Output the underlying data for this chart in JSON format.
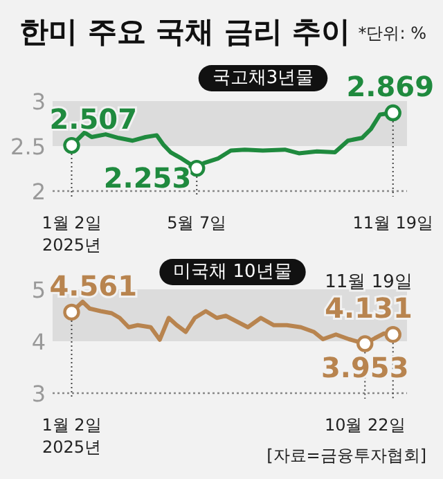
{
  "chart_data": [
    {
      "type": "line",
      "title": "한미 주요 국채 금리 추이",
      "subtitle": "국고채3년물",
      "x": [
        "2025-01-02",
        "2025-01-15",
        "2025-01-22",
        "2025-02-05",
        "2025-02-18",
        "2025-03-04",
        "2025-03-17",
        "2025-03-28",
        "2025-04-04",
        "2025-04-11",
        "2025-04-22",
        "2025-05-07",
        "2025-05-14",
        "2025-05-28",
        "2025-06-10",
        "2025-06-24",
        "2025-07-12",
        "2025-08-03",
        "2025-08-17",
        "2025-09-04",
        "2025-09-22",
        "2025-10-05",
        "2025-10-19",
        "2025-10-28",
        "2025-11-06",
        "2025-11-19"
      ],
      "series": [
        {
          "color": "#1f8a3e",
          "values": [
            2.507,
            2.65,
            2.6,
            2.63,
            2.59,
            2.56,
            2.6,
            2.62,
            2.51,
            2.43,
            2.36,
            2.253,
            2.31,
            2.36,
            2.45,
            2.46,
            2.45,
            2.46,
            2.42,
            2.44,
            2.43,
            2.56,
            2.59,
            2.69,
            2.85,
            2.869
          ]
        }
      ],
      "xlim": [
        "2024-12-14",
        "2025-12-03"
      ],
      "xticks": [
        {
          "value": "2025-01-02",
          "label": "1월 2일\n2025년"
        },
        {
          "value": "2025-05-07",
          "label": "5월 7일"
        },
        {
          "value": "2025-11-19",
          "label": "11월 19일"
        }
      ],
      "ylim": [
        2,
        3
      ],
      "yticks": [
        2,
        2.5,
        3
      ],
      "bands": [
        {
          "axis": "y",
          "from": 2.5,
          "to": 3,
          "color": "#dcdcdc"
        }
      ],
      "annotations": [
        "*단위: %",
        {
          "text": "2.507",
          "x": "2025-01-02",
          "y": 2.507
        },
        {
          "text": "2.253",
          "x": "2025-05-07",
          "y": 2.253
        },
        {
          "text": "2.869",
          "x": "2025-11-19",
          "y": 2.869
        }
      ]
    },
    {
      "type": "line",
      "title": "미국채 10년물",
      "x": [
        "2025-01-02",
        "2025-01-13",
        "2025-01-20",
        "2025-01-31",
        "2025-02-11",
        "2025-02-19",
        "2025-02-28",
        "2025-03-09",
        "2025-03-22",
        "2025-03-31",
        "2025-04-09",
        "2025-04-17",
        "2025-04-26",
        "2025-05-05",
        "2025-05-16",
        "2025-05-27",
        "2025-06-05",
        "2025-06-18",
        "2025-06-27",
        "2025-07-10",
        "2025-07-23",
        "2025-08-05",
        "2025-08-19",
        "2025-09-01",
        "2025-09-10",
        "2025-09-23",
        "2025-10-06",
        "2025-10-22",
        "2025-11-01",
        "2025-11-10",
        "2025-11-19"
      ],
      "series": [
        {
          "color": "#b8844f",
          "values": [
            4.561,
            4.76,
            4.63,
            4.58,
            4.54,
            4.45,
            4.27,
            4.31,
            4.27,
            4.03,
            4.45,
            4.31,
            4.18,
            4.45,
            4.58,
            4.45,
            4.49,
            4.36,
            4.27,
            4.45,
            4.31,
            4.31,
            4.27,
            4.18,
            4.04,
            4.13,
            4.04,
            3.953,
            4.06,
            4.15,
            4.131
          ]
        }
      ],
      "xlim": [
        "2024-12-14",
        "2025-12-03"
      ],
      "xticks": [
        {
          "value": "2025-01-02",
          "label": "1월 2일\n2025년"
        },
        {
          "value": "2025-10-22",
          "label": "10월 22일"
        }
      ],
      "ylim": [
        3,
        5
      ],
      "yticks": [
        3,
        4,
        5
      ],
      "bands": [
        {
          "axis": "y",
          "from": 4,
          "to": 5,
          "color": "#dcdcdc"
        }
      ],
      "annotations": [
        "[자료=금융투자협회]",
        {
          "text": "4.561",
          "x": "2025-01-02",
          "y": 4.561
        },
        {
          "text": "3.953",
          "x": "2025-10-22",
          "y": 3.953
        },
        {
          "text": "4.131",
          "x": "2025-11-19",
          "y": 4.131
        },
        {
          "text": "11월 19일",
          "x": "2025-11-19",
          "y": 4.131
        }
      ]
    }
  ]
}
